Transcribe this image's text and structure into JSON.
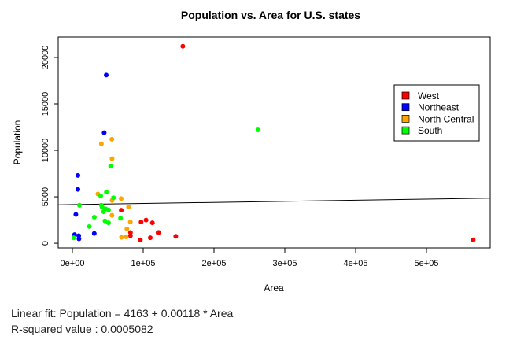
{
  "chart_data": {
    "type": "scatter",
    "title": "Population vs. Area for U.S. states",
    "xlabel": "Area",
    "ylabel": "Population",
    "xlim": [
      -20000,
      590000
    ],
    "ylim": [
      -500,
      22200
    ],
    "x_ticks": [
      {
        "value": 0,
        "label": "0e+00"
      },
      {
        "value": 100000,
        "label": "1e+05"
      },
      {
        "value": 200000,
        "label": "2e+05"
      },
      {
        "value": 300000,
        "label": "3e+05"
      },
      {
        "value": 400000,
        "label": "4e+05"
      },
      {
        "value": 500000,
        "label": "5e+05"
      }
    ],
    "y_ticks": [
      {
        "value": 0,
        "label": "0"
      },
      {
        "value": 5000,
        "label": "5000"
      },
      {
        "value": 10000,
        "label": "10000"
      },
      {
        "value": 15000,
        "label": "15000"
      },
      {
        "value": 20000,
        "label": "20000"
      }
    ],
    "legend_position": "top-right",
    "grid": false,
    "series": [
      {
        "name": "West",
        "color": "#ff0000",
        "points": [
          [
            156000,
            21200
          ],
          [
            566000,
            370
          ],
          [
            146000,
            750
          ],
          [
            113000,
            2200
          ],
          [
            104000,
            2500
          ],
          [
            97000,
            2280
          ],
          [
            82000,
            1150
          ],
          [
            110000,
            590
          ],
          [
            121000,
            1140
          ],
          [
            96000,
            360
          ],
          [
            82000,
            810
          ],
          [
            69000,
            3560
          ],
          [
            122000,
            1160
          ]
        ]
      },
      {
        "name": "Northeast",
        "color": "#0000ff",
        "points": [
          [
            47800,
            18100
          ],
          [
            44900,
            11900
          ],
          [
            7800,
            7300
          ],
          [
            7800,
            5800
          ],
          [
            4900,
            3100
          ],
          [
            3100,
            930
          ],
          [
            9000,
            810
          ],
          [
            9300,
            470
          ],
          [
            30900,
            1060
          ]
        ]
      },
      {
        "name": "North Central",
        "color": "#ffa500",
        "points": [
          [
            55700,
            11200
          ],
          [
            56000,
            9100
          ],
          [
            41000,
            10700
          ],
          [
            36000,
            5300
          ],
          [
            68900,
            4800
          ],
          [
            79300,
            3900
          ],
          [
            56000,
            4600
          ],
          [
            55900,
            3000
          ],
          [
            81800,
            2300
          ],
          [
            77000,
            1540
          ],
          [
            69300,
            640
          ],
          [
            75900,
            690
          ]
        ]
      },
      {
        "name": "South",
        "color": "#00ff00",
        "points": [
          [
            262000,
            12200
          ],
          [
            54000,
            8300
          ],
          [
            58000,
            4900
          ],
          [
            48000,
            5500
          ],
          [
            40000,
            5100
          ],
          [
            41000,
            4100
          ],
          [
            42000,
            3900
          ],
          [
            47000,
            3700
          ],
          [
            51000,
            3600
          ],
          [
            44000,
            3400
          ],
          [
            51000,
            2200
          ],
          [
            31000,
            2800
          ],
          [
            68000,
            2700
          ],
          [
            46000,
            2400
          ],
          [
            24000,
            1800
          ],
          [
            10000,
            4100
          ],
          [
            2000,
            580
          ]
        ]
      }
    ],
    "fit_line": {
      "intercept": 4163,
      "slope": 0.00118,
      "color": "#000000"
    }
  },
  "footer": {
    "fit_text": "Linear fit: Population = 4163 + 0.00118 * Area",
    "rsq_text": "R-squared value : 0.0005082"
  }
}
